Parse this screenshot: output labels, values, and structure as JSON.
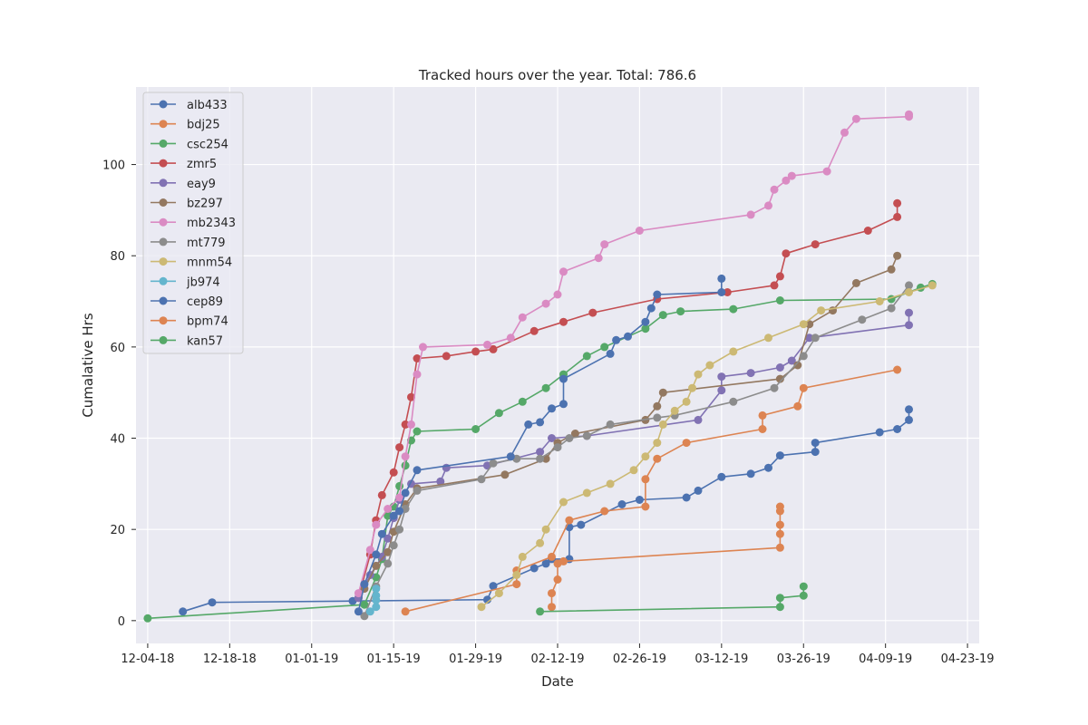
{
  "chart_data": {
    "type": "line",
    "title": "Tracked hours over the year. Total: 786.6",
    "xlabel": "Date",
    "ylabel": "Cumalative Hrs",
    "x_is_date": true,
    "xlim": [
      "2018-12-02",
      "2019-04-25"
    ],
    "ylim": [
      -5,
      117
    ],
    "x_ticks": [
      {
        "date": "2018-12-04",
        "label": "12-04-18"
      },
      {
        "date": "2018-12-18",
        "label": "12-18-18"
      },
      {
        "date": "2019-01-01",
        "label": "01-01-19"
      },
      {
        "date": "2019-01-15",
        "label": "01-15-19"
      },
      {
        "date": "2019-01-29",
        "label": "01-29-19"
      },
      {
        "date": "2019-02-12",
        "label": "02-12-19"
      },
      {
        "date": "2019-02-26",
        "label": "02-26-19"
      },
      {
        "date": "2019-03-12",
        "label": "03-12-19"
      },
      {
        "date": "2019-03-26",
        "label": "03-26-19"
      },
      {
        "date": "2019-04-09",
        "label": "04-09-19"
      },
      {
        "date": "2019-04-23",
        "label": "04-23-19"
      }
    ],
    "y_ticks": [
      0,
      20,
      40,
      60,
      80,
      100
    ],
    "grid": true,
    "legend_position": "upper-left",
    "series": [
      {
        "name": "alb433",
        "color": "#4c72b0",
        "points": [
          [
            "2018-12-10",
            2.0
          ],
          [
            "2018-12-15",
            4.0
          ],
          [
            "2019-01-08",
            4.3
          ],
          [
            "2019-01-31",
            4.6
          ],
          [
            "2019-02-01",
            7.6
          ],
          [
            "2019-02-08",
            11.5
          ],
          [
            "2019-02-10",
            12.5
          ],
          [
            "2019-02-11",
            13.5
          ],
          [
            "2019-02-14",
            13.5
          ],
          [
            "2019-02-14",
            20.5
          ],
          [
            "2019-02-16",
            21.0
          ],
          [
            "2019-02-23",
            25.5
          ],
          [
            "2019-02-26",
            26.5
          ],
          [
            "2019-03-06",
            27.0
          ],
          [
            "2019-03-08",
            28.5
          ],
          [
            "2019-03-12",
            31.5
          ],
          [
            "2019-03-17",
            32.2
          ],
          [
            "2019-03-20",
            33.5
          ],
          [
            "2019-03-22",
            36.2
          ],
          [
            "2019-03-28",
            37.0
          ],
          [
            "2019-03-28",
            39.0
          ],
          [
            "2019-04-08",
            41.3
          ],
          [
            "2019-04-11",
            42.0
          ],
          [
            "2019-04-13",
            44.0
          ],
          [
            "2019-04-13",
            46.3
          ]
        ]
      },
      {
        "name": "bdj25",
        "color": "#dd8452",
        "points": [
          [
            "2019-01-17",
            2.0
          ],
          [
            "2019-02-05",
            8.0
          ],
          [
            "2019-02-05",
            11.0
          ],
          [
            "2019-02-11",
            14.0
          ],
          [
            "2019-02-14",
            22.0
          ],
          [
            "2019-02-20",
            24.0
          ],
          [
            "2019-02-27",
            25.0
          ],
          [
            "2019-02-27",
            31.0
          ],
          [
            "2019-03-01",
            35.5
          ],
          [
            "2019-03-06",
            39.0
          ],
          [
            "2019-03-19",
            42.0
          ],
          [
            "2019-03-19",
            45.0
          ],
          [
            "2019-03-25",
            47.0
          ],
          [
            "2019-03-26",
            51.0
          ],
          [
            "2019-04-11",
            55.0
          ]
        ]
      },
      {
        "name": "csc254",
        "color": "#55a868",
        "points": [
          [
            "2018-12-04",
            0.5
          ],
          [
            "2019-01-10",
            3.5
          ],
          [
            "2019-01-12",
            9.5
          ],
          [
            "2019-01-13",
            13.5
          ],
          [
            "2019-01-14",
            23.0
          ],
          [
            "2019-01-15",
            25.0
          ],
          [
            "2019-01-16",
            29.5
          ],
          [
            "2019-01-17",
            34.0
          ],
          [
            "2019-01-18",
            39.5
          ],
          [
            "2019-01-19",
            41.5
          ],
          [
            "2019-01-29",
            42.0
          ],
          [
            "2019-02-02",
            45.5
          ],
          [
            "2019-02-06",
            48.0
          ],
          [
            "2019-02-10",
            51.0
          ],
          [
            "2019-02-13",
            54.0
          ],
          [
            "2019-02-17",
            58.0
          ],
          [
            "2019-02-20",
            60.0
          ],
          [
            "2019-02-27",
            64.0
          ],
          [
            "2019-03-02",
            67.0
          ],
          [
            "2019-03-05",
            67.8
          ],
          [
            "2019-03-14",
            68.3
          ],
          [
            "2019-03-22",
            70.2
          ],
          [
            "2019-04-10",
            70.5
          ],
          [
            "2019-04-15",
            73.0
          ],
          [
            "2019-04-17",
            73.8
          ]
        ]
      },
      {
        "name": "zmr5",
        "color": "#c44e52",
        "points": [
          [
            "2019-01-09",
            5.0
          ],
          [
            "2019-01-11",
            14.5
          ],
          [
            "2019-01-12",
            22.0
          ],
          [
            "2019-01-13",
            27.5
          ],
          [
            "2019-01-15",
            32.5
          ],
          [
            "2019-01-16",
            38.0
          ],
          [
            "2019-01-17",
            43.0
          ],
          [
            "2019-01-18",
            49.0
          ],
          [
            "2019-01-19",
            57.5
          ],
          [
            "2019-01-24",
            58.0
          ],
          [
            "2019-01-29",
            59.0
          ],
          [
            "2019-02-01",
            59.5
          ],
          [
            "2019-02-08",
            63.5
          ],
          [
            "2019-02-13",
            65.5
          ],
          [
            "2019-02-18",
            67.5
          ],
          [
            "2019-03-01",
            70.5
          ],
          [
            "2019-03-13",
            72.0
          ],
          [
            "2019-03-21",
            73.5
          ],
          [
            "2019-03-22",
            75.5
          ],
          [
            "2019-03-23",
            80.5
          ],
          [
            "2019-03-28",
            82.5
          ],
          [
            "2019-04-06",
            85.5
          ],
          [
            "2019-04-11",
            88.5
          ],
          [
            "2019-04-11",
            91.5
          ]
        ]
      },
      {
        "name": "eay9",
        "color": "#8172b3",
        "points": [
          [
            "2019-01-09",
            5.0
          ],
          [
            "2019-01-11",
            10.0
          ],
          [
            "2019-01-13",
            14.0
          ],
          [
            "2019-01-14",
            18.0
          ],
          [
            "2019-01-15",
            22.5
          ],
          [
            "2019-01-16",
            26.5
          ],
          [
            "2019-01-18",
            30.0
          ],
          [
            "2019-01-23",
            30.5
          ],
          [
            "2019-01-24",
            33.5
          ],
          [
            "2019-01-31",
            34.0
          ],
          [
            "2019-02-09",
            37.0
          ],
          [
            "2019-02-11",
            40.0
          ],
          [
            "2019-02-17",
            40.5
          ],
          [
            "2019-03-08",
            44.0
          ],
          [
            "2019-03-12",
            50.5
          ],
          [
            "2019-03-12",
            53.5
          ],
          [
            "2019-03-17",
            54.3
          ],
          [
            "2019-03-22",
            55.5
          ],
          [
            "2019-03-24",
            57.0
          ],
          [
            "2019-03-27",
            62.0
          ],
          [
            "2019-04-13",
            64.8
          ],
          [
            "2019-04-13",
            67.5
          ]
        ]
      },
      {
        "name": "bz297",
        "color": "#937860",
        "points": [
          [
            "2019-01-10",
            7.0
          ],
          [
            "2019-01-12",
            12.0
          ],
          [
            "2019-01-14",
            15.0
          ],
          [
            "2019-01-15",
            19.5
          ],
          [
            "2019-01-17",
            25.5
          ],
          [
            "2019-01-19",
            29.0
          ],
          [
            "2019-02-03",
            32.0
          ],
          [
            "2019-02-10",
            35.5
          ],
          [
            "2019-02-12",
            39.0
          ],
          [
            "2019-02-15",
            41.0
          ],
          [
            "2019-02-27",
            44.0
          ],
          [
            "2019-02-29",
            47.0
          ],
          [
            "2019-03-02",
            50.0
          ],
          [
            "2019-03-22",
            53.0
          ],
          [
            "2019-03-25",
            56.0
          ],
          [
            "2019-03-27",
            65.0
          ],
          [
            "2019-03-31",
            68.0
          ],
          [
            "2019-04-04",
            74.0
          ],
          [
            "2019-04-10",
            77.0
          ],
          [
            "2019-04-11",
            80.0
          ]
        ]
      },
      {
        "name": "mb2343",
        "color": "#da8bc3",
        "points": [
          [
            "2019-01-09",
            6.0
          ],
          [
            "2019-01-11",
            15.5
          ],
          [
            "2019-01-12",
            21.0
          ],
          [
            "2019-01-14",
            24.5
          ],
          [
            "2019-01-16",
            27.0
          ],
          [
            "2019-01-17",
            36.0
          ],
          [
            "2019-01-18",
            43.0
          ],
          [
            "2019-01-19",
            54.0
          ],
          [
            "2019-01-20",
            60.0
          ],
          [
            "2019-01-31",
            60.5
          ],
          [
            "2019-02-04",
            62.0
          ],
          [
            "2019-02-06",
            66.5
          ],
          [
            "2019-02-10",
            69.5
          ],
          [
            "2019-02-12",
            71.5
          ],
          [
            "2019-02-13",
            76.5
          ],
          [
            "2019-02-19",
            79.5
          ],
          [
            "2019-02-20",
            82.5
          ],
          [
            "2019-02-26",
            85.5
          ],
          [
            "2019-03-17",
            89.0
          ],
          [
            "2019-03-20",
            91.0
          ],
          [
            "2019-03-21",
            94.5
          ],
          [
            "2019-03-23",
            96.5
          ],
          [
            "2019-03-24",
            97.5
          ],
          [
            "2019-03-30",
            98.5
          ],
          [
            "2019-04-02",
            107.0
          ],
          [
            "2019-04-04",
            110.0
          ],
          [
            "2019-04-13",
            110.5
          ],
          [
            "2019-04-13",
            111.0
          ]
        ]
      },
      {
        "name": "mt779",
        "color": "#8c8c8c",
        "points": [
          [
            "2019-01-10",
            1.0
          ],
          [
            "2019-01-12",
            7.5
          ],
          [
            "2019-01-14",
            12.5
          ],
          [
            "2019-01-15",
            16.5
          ],
          [
            "2019-01-16",
            20.0
          ],
          [
            "2019-01-17",
            24.5
          ],
          [
            "2019-01-19",
            28.5
          ],
          [
            "2019-01-30",
            31.0
          ],
          [
            "2019-02-01",
            34.5
          ],
          [
            "2019-02-05",
            35.5
          ],
          [
            "2019-02-09",
            35.5
          ],
          [
            "2019-02-12",
            38.0
          ],
          [
            "2019-02-14",
            40.0
          ],
          [
            "2019-02-17",
            40.5
          ],
          [
            "2019-02-21",
            43.0
          ],
          [
            "2019-03-01",
            44.5
          ],
          [
            "2019-03-04",
            45.0
          ],
          [
            "2019-03-14",
            48.0
          ],
          [
            "2019-03-21",
            51.0
          ],
          [
            "2019-03-26",
            58.0
          ],
          [
            "2019-03-28",
            62.0
          ],
          [
            "2019-04-05",
            66.0
          ],
          [
            "2019-04-10",
            68.5
          ],
          [
            "2019-04-13",
            73.5
          ]
        ]
      },
      {
        "name": "mnm54",
        "color": "#ccb974",
        "points": [
          [
            "2019-01-30",
            3.0
          ],
          [
            "2019-02-02",
            6.0
          ],
          [
            "2019-02-05",
            10.0
          ],
          [
            "2019-02-06",
            14.0
          ],
          [
            "2019-02-09",
            17.0
          ],
          [
            "2019-02-10",
            20.0
          ],
          [
            "2019-02-13",
            26.0
          ],
          [
            "2019-02-17",
            28.0
          ],
          [
            "2019-02-21",
            30.0
          ],
          [
            "2019-02-25",
            33.0
          ],
          [
            "2019-02-27",
            36.0
          ],
          [
            "2019-03-01",
            39.0
          ],
          [
            "2019-03-02",
            43.0
          ],
          [
            "2019-03-04",
            46.0
          ],
          [
            "2019-03-06",
            48.0
          ],
          [
            "2019-03-07",
            51.0
          ],
          [
            "2019-03-08",
            54.0
          ],
          [
            "2019-03-10",
            56.0
          ],
          [
            "2019-03-14",
            59.0
          ],
          [
            "2019-03-20",
            62.0
          ],
          [
            "2019-03-26",
            65.0
          ],
          [
            "2019-03-29",
            68.0
          ],
          [
            "2019-04-08",
            70.0
          ],
          [
            "2019-04-13",
            72.0
          ],
          [
            "2019-04-17",
            73.5
          ]
        ]
      },
      {
        "name": "jb974",
        "color": "#64b5cd",
        "points": [
          [
            "2019-01-11",
            2.0
          ],
          [
            "2019-01-12",
            3.0
          ],
          [
            "2019-01-12",
            4.5
          ],
          [
            "2019-01-12",
            5.5
          ],
          [
            "2019-01-12",
            7.0
          ]
        ]
      },
      {
        "name": "cep89",
        "color": "#4c72b0",
        "points": [
          [
            "2019-01-09",
            2.0
          ],
          [
            "2019-01-10",
            8.0
          ],
          [
            "2019-01-12",
            14.5
          ],
          [
            "2019-01-13",
            19.0
          ],
          [
            "2019-01-15",
            23.0
          ],
          [
            "2019-01-16",
            24.0
          ],
          [
            "2019-01-17",
            28.0
          ],
          [
            "2019-01-19",
            33.0
          ],
          [
            "2019-02-04",
            36.0
          ],
          [
            "2019-02-07",
            43.0
          ],
          [
            "2019-02-09",
            43.5
          ],
          [
            "2019-02-11",
            46.5
          ],
          [
            "2019-02-13",
            47.5
          ],
          [
            "2019-02-13",
            53.0
          ],
          [
            "2019-02-21",
            58.5
          ],
          [
            "2019-02-22",
            61.5
          ],
          [
            "2019-02-24",
            62.3
          ],
          [
            "2019-02-27",
            65.5
          ],
          [
            "2019-02-28",
            68.5
          ],
          [
            "2019-03-01",
            71.5
          ],
          [
            "2019-03-12",
            72.0
          ],
          [
            "2019-03-12",
            75.0
          ]
        ]
      },
      {
        "name": "bpm74",
        "color": "#dd8452",
        "points": [
          [
            "2019-02-11",
            3.0
          ],
          [
            "2019-02-11",
            6.0
          ],
          [
            "2019-02-12",
            9.0
          ],
          [
            "2019-02-12",
            12.5
          ],
          [
            "2019-02-13",
            13.0
          ],
          [
            "2019-03-22",
            16.0
          ],
          [
            "2019-03-22",
            19.0
          ],
          [
            "2019-03-22",
            21.0
          ],
          [
            "2019-03-22",
            24.0
          ],
          [
            "2019-03-22",
            25.0
          ]
        ]
      },
      {
        "name": "kan57",
        "color": "#55a868",
        "points": [
          [
            "2019-02-09",
            2.0
          ],
          [
            "2019-03-22",
            3.0
          ],
          [
            "2019-03-22",
            5.0
          ],
          [
            "2019-03-26",
            5.5
          ],
          [
            "2019-03-26",
            7.5
          ]
        ]
      }
    ]
  }
}
